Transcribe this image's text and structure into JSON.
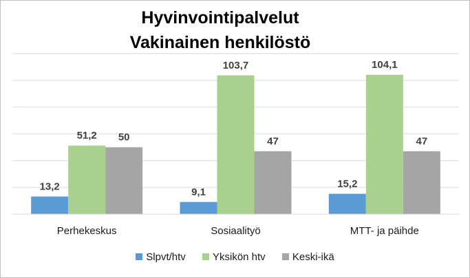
{
  "chart_data": {
    "type": "bar",
    "title": [
      "Hyvinvointipalvelut",
      "Vakinainen henkilöstö"
    ],
    "categories": [
      "Perhekeskus",
      "Sosiaalityö",
      "MTT- ja päihde"
    ],
    "series": [
      {
        "name": "Slpvt/htv",
        "color": "#5b9bd5",
        "values": [
          13.2,
          9.1,
          15.2
        ],
        "labels": [
          "13,2",
          "9,1",
          "15,2"
        ]
      },
      {
        "name": "Yksikön htv",
        "color": "#a9d18e",
        "values": [
          51.2,
          103.7,
          104.1
        ],
        "labels": [
          "51,2",
          "103,7",
          "104,1"
        ]
      },
      {
        "name": "Keski-ikä",
        "color": "#a5a5a5",
        "values": [
          50,
          47,
          47
        ],
        "labels": [
          "50",
          "47",
          "47"
        ]
      }
    ],
    "ylim": [
      0,
      120
    ],
    "grid": true,
    "legend": "bottom"
  }
}
